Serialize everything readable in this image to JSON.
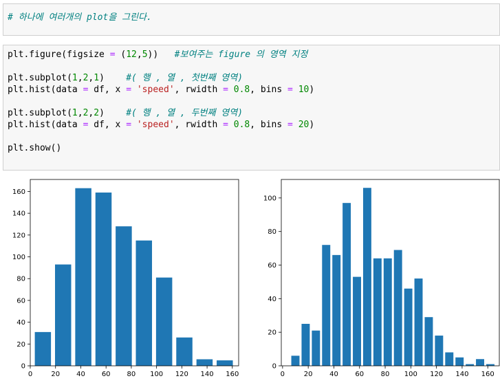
{
  "markdown_cell": {
    "text": "# 하나에 여러개의 plot을 그린다."
  },
  "code_cell": {
    "lines": [
      [
        {
          "t": "plt.figure(figsize ",
          "c": "p"
        },
        {
          "t": "=",
          "c": "op"
        },
        {
          "t": " (",
          "c": "p"
        },
        {
          "t": "12",
          "c": "num"
        },
        {
          "t": ",",
          "c": "p"
        },
        {
          "t": "5",
          "c": "num"
        },
        {
          "t": "))   ",
          "c": "p"
        },
        {
          "t": "#보여주는 figure 의 영역 지정",
          "c": "cm"
        }
      ],
      [],
      [
        {
          "t": "plt.subplot(",
          "c": "p"
        },
        {
          "t": "1",
          "c": "num"
        },
        {
          "t": ",",
          "c": "p"
        },
        {
          "t": "2",
          "c": "num"
        },
        {
          "t": ",",
          "c": "p"
        },
        {
          "t": "1",
          "c": "num"
        },
        {
          "t": ")    ",
          "c": "p"
        },
        {
          "t": "#( 행 , 열 , 첫번째 영역)",
          "c": "cm"
        }
      ],
      [
        {
          "t": "plt.hist(data ",
          "c": "p"
        },
        {
          "t": "=",
          "c": "op"
        },
        {
          "t": " df, x ",
          "c": "p"
        },
        {
          "t": "=",
          "c": "op"
        },
        {
          "t": " ",
          "c": "p"
        },
        {
          "t": "'speed'",
          "c": "str"
        },
        {
          "t": ", rwidth ",
          "c": "p"
        },
        {
          "t": "=",
          "c": "op"
        },
        {
          "t": " ",
          "c": "p"
        },
        {
          "t": "0.8",
          "c": "num"
        },
        {
          "t": ", bins ",
          "c": "p"
        },
        {
          "t": "=",
          "c": "op"
        },
        {
          "t": " ",
          "c": "p"
        },
        {
          "t": "10",
          "c": "num"
        },
        {
          "t": ")",
          "c": "p"
        }
      ],
      [],
      [
        {
          "t": "plt.subplot(",
          "c": "p"
        },
        {
          "t": "1",
          "c": "num"
        },
        {
          "t": ",",
          "c": "p"
        },
        {
          "t": "2",
          "c": "num"
        },
        {
          "t": ",",
          "c": "p"
        },
        {
          "t": "2",
          "c": "num"
        },
        {
          "t": ")    ",
          "c": "p"
        },
        {
          "t": "#( 행 , 열 , 두번째 영역)",
          "c": "cm"
        }
      ],
      [
        {
          "t": "plt.hist(data ",
          "c": "p"
        },
        {
          "t": "=",
          "c": "op"
        },
        {
          "t": " df, x ",
          "c": "p"
        },
        {
          "t": "=",
          "c": "op"
        },
        {
          "t": " ",
          "c": "p"
        },
        {
          "t": "'speed'",
          "c": "str"
        },
        {
          "t": ", rwidth ",
          "c": "p"
        },
        {
          "t": "=",
          "c": "op"
        },
        {
          "t": " ",
          "c": "p"
        },
        {
          "t": "0.8",
          "c": "num"
        },
        {
          "t": ", bins ",
          "c": "p"
        },
        {
          "t": "=",
          "c": "op"
        },
        {
          "t": " ",
          "c": "p"
        },
        {
          "t": "20",
          "c": "num"
        },
        {
          "t": ")",
          "c": "p"
        }
      ],
      [],
      [
        {
          "t": "plt.show()",
          "c": "p"
        }
      ]
    ]
  },
  "chart_data": [
    {
      "type": "bar",
      "color": "#1f77b4",
      "bins": 10,
      "rwidth": 0.8,
      "x": [
        10,
        26,
        42,
        58,
        74,
        90,
        106,
        122,
        138,
        154
      ],
      "bin_width": 16,
      "values": [
        31,
        93,
        163,
        159,
        128,
        115,
        81,
        26,
        6,
        5
      ],
      "xlim": [
        0,
        165
      ],
      "ylim": [
        0,
        171
      ],
      "xticks": [
        0,
        20,
        40,
        60,
        80,
        100,
        120,
        140,
        160
      ],
      "yticks": [
        0,
        20,
        40,
        60,
        80,
        100,
        120,
        140,
        160
      ]
    },
    {
      "type": "bar",
      "color": "#1f77b4",
      "bins": 20,
      "rwidth": 0.8,
      "x": [
        10,
        18,
        26,
        34,
        42,
        50,
        58,
        66,
        74,
        82,
        90,
        98,
        106,
        114,
        122,
        130,
        138,
        146,
        154,
        162
      ],
      "bin_width": 8,
      "values": [
        6,
        25,
        21,
        72,
        66,
        97,
        53,
        106,
        64,
        64,
        69,
        46,
        52,
        29,
        18,
        8,
        5,
        1,
        4,
        1
      ],
      "xlim": [
        -1,
        169
      ],
      "ylim": [
        0,
        111
      ],
      "xticks": [
        0,
        20,
        40,
        60,
        80,
        100,
        120,
        140,
        160
      ],
      "yticks": [
        0,
        20,
        40,
        60,
        80,
        100
      ]
    }
  ]
}
